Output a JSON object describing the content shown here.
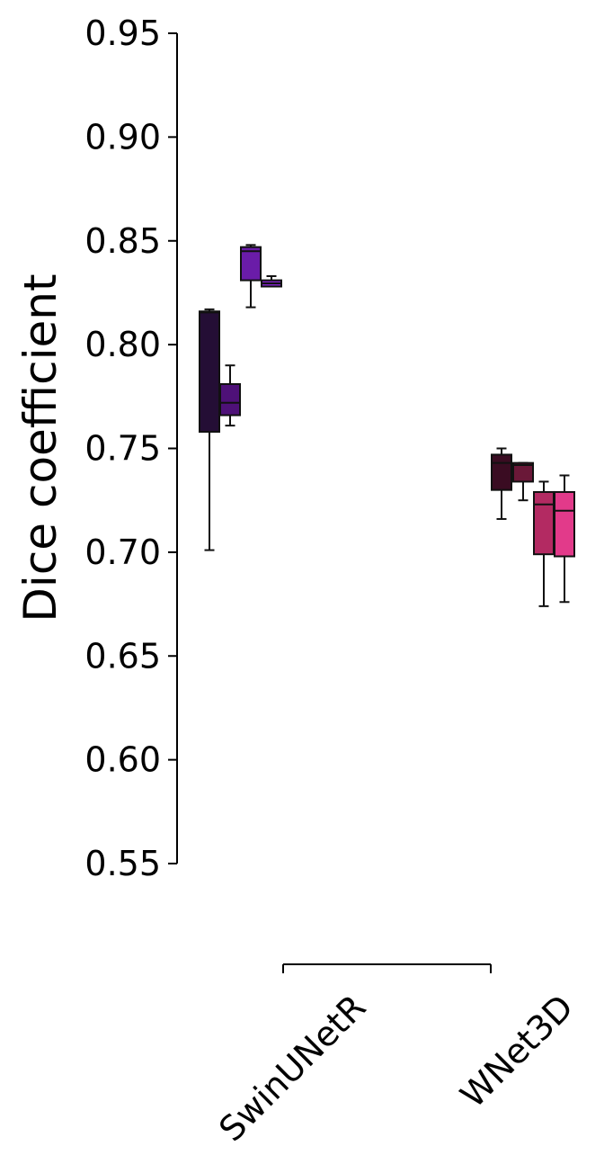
{
  "chart_data": {
    "type": "box",
    "ylabel": "Dice coefficient",
    "ylim": [
      0.55,
      0.95
    ],
    "yticks": [
      "0.55",
      "0.60",
      "0.65",
      "0.70",
      "0.75",
      "0.80",
      "0.85",
      "0.90",
      "0.95"
    ],
    "categories": [
      "SwinUNetR",
      "WNet3D"
    ],
    "grid": false,
    "series": [
      {
        "color": "#240e35",
        "groups": [
          {
            "category": "SwinUNetR",
            "min": 0.701,
            "q1": 0.758,
            "median": 0.8155,
            "q3": 0.816,
            "max": 0.817
          }
        ]
      },
      {
        "color": "#4e1178",
        "groups": [
          {
            "category": "SwinUNetR",
            "min": 0.761,
            "q1": 0.766,
            "median": 0.772,
            "q3": 0.781,
            "max": 0.79
          }
        ]
      },
      {
        "color": "#6a1ca8",
        "groups": [
          {
            "category": "SwinUNetR",
            "min": 0.818,
            "q1": 0.831,
            "median": 0.845,
            "q3": 0.847,
            "max": 0.848
          }
        ]
      },
      {
        "color": "#7e22c4",
        "groups": [
          {
            "category": "SwinUNetR",
            "min": 0.828,
            "q1": 0.828,
            "median": 0.8295,
            "q3": 0.831,
            "max": 0.833
          }
        ]
      },
      {
        "color": "#3a0c22",
        "groups": [
          {
            "category": "WNet3D",
            "min": 0.716,
            "q1": 0.73,
            "median": 0.743,
            "q3": 0.747,
            "max": 0.75
          }
        ]
      },
      {
        "color": "#6a1838",
        "groups": [
          {
            "category": "WNet3D",
            "min": 0.725,
            "q1": 0.734,
            "median": 0.742,
            "q3": 0.743,
            "max": 0.743
          }
        ]
      },
      {
        "color": "#b32a62",
        "groups": [
          {
            "category": "WNet3D",
            "min": 0.674,
            "q1": 0.699,
            "median": 0.723,
            "q3": 0.729,
            "max": 0.734
          }
        ]
      },
      {
        "color": "#e23a8a",
        "groups": [
          {
            "category": "WNet3D",
            "min": 0.676,
            "q1": 0.698,
            "median": 0.72,
            "q3": 0.729,
            "max": 0.737
          }
        ]
      }
    ]
  }
}
